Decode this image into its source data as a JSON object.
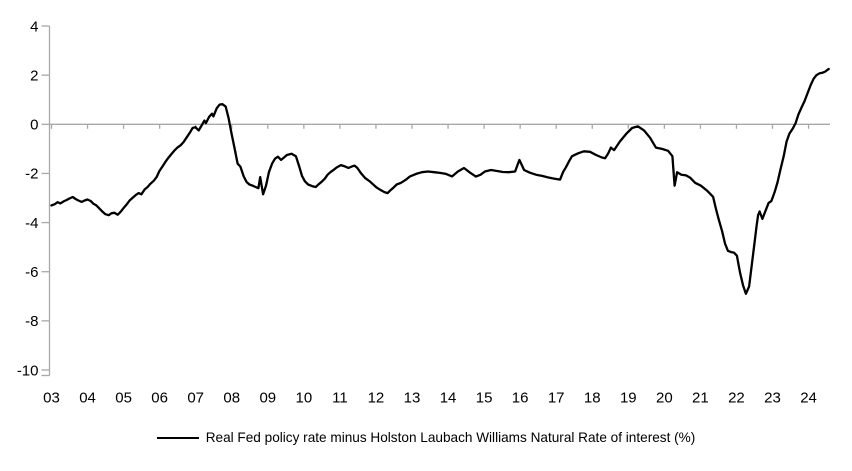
{
  "legend": {
    "label": "Real Fed policy rate minus Holston Laubach Williams Natural Rate of interest (%)"
  },
  "colors": {
    "line": "#000000",
    "axis_gray": "#a8a8a8",
    "label_text": "#000000",
    "background": "#ffffff"
  },
  "chart_data": {
    "type": "line",
    "title": "",
    "xlabel": "",
    "ylabel": "",
    "grid": "zero-line-only",
    "legend_position": "bottom-center",
    "ylim": [
      -10,
      4
    ],
    "xlim": [
      2003,
      2024.72
    ],
    "y_ticks": [
      4,
      2,
      0,
      -2,
      -4,
      -6,
      -8,
      -10
    ],
    "y_tick_labels": [
      "4",
      "2",
      "0",
      "-2",
      "-4",
      "-6",
      "-8",
      "-10"
    ],
    "x_tick_years": [
      2003,
      2004,
      2005,
      2006,
      2007,
      2008,
      2009,
      2010,
      2011,
      2012,
      2013,
      2014,
      2015,
      2016,
      2017,
      2018,
      2019,
      2020,
      2021,
      2022,
      2023,
      2024
    ],
    "x_tick_labels": [
      "03",
      "04",
      "05",
      "06",
      "07",
      "08",
      "09",
      "10",
      "11",
      "12",
      "13",
      "14",
      "15",
      "16",
      "17",
      "18",
      "19",
      "20",
      "21",
      "22",
      "23",
      "24"
    ],
    "series": [
      {
        "name": "Real Fed policy rate minus Holston Laubach Williams Natural Rate of interest (%)",
        "color": "#000000",
        "points": [
          [
            2003.04,
            -3.3
          ],
          [
            2003.13,
            -3.25
          ],
          [
            2003.21,
            -3.17
          ],
          [
            2003.29,
            -3.22
          ],
          [
            2003.38,
            -3.14
          ],
          [
            2003.46,
            -3.08
          ],
          [
            2003.54,
            -3.02
          ],
          [
            2003.63,
            -2.96
          ],
          [
            2003.71,
            -3.04
          ],
          [
            2003.79,
            -3.1
          ],
          [
            2003.88,
            -3.16
          ],
          [
            2003.96,
            -3.1
          ],
          [
            2004.04,
            -3.06
          ],
          [
            2004.13,
            -3.12
          ],
          [
            2004.21,
            -3.24
          ],
          [
            2004.29,
            -3.3
          ],
          [
            2004.38,
            -3.44
          ],
          [
            2004.46,
            -3.56
          ],
          [
            2004.54,
            -3.66
          ],
          [
            2004.63,
            -3.7
          ],
          [
            2004.71,
            -3.62
          ],
          [
            2004.79,
            -3.6
          ],
          [
            2004.88,
            -3.68
          ],
          [
            2004.96,
            -3.56
          ],
          [
            2005.04,
            -3.42
          ],
          [
            2005.13,
            -3.26
          ],
          [
            2005.21,
            -3.1
          ],
          [
            2005.29,
            -3.0
          ],
          [
            2005.38,
            -2.88
          ],
          [
            2005.46,
            -2.8
          ],
          [
            2005.54,
            -2.85
          ],
          [
            2005.63,
            -2.65
          ],
          [
            2005.71,
            -2.55
          ],
          [
            2005.79,
            -2.42
          ],
          [
            2005.88,
            -2.3
          ],
          [
            2005.96,
            -2.15
          ],
          [
            2006.04,
            -1.9
          ],
          [
            2006.13,
            -1.7
          ],
          [
            2006.21,
            -1.52
          ],
          [
            2006.29,
            -1.36
          ],
          [
            2006.38,
            -1.2
          ],
          [
            2006.46,
            -1.06
          ],
          [
            2006.54,
            -0.95
          ],
          [
            2006.63,
            -0.85
          ],
          [
            2006.71,
            -0.72
          ],
          [
            2006.79,
            -0.55
          ],
          [
            2006.88,
            -0.35
          ],
          [
            2006.96,
            -0.15
          ],
          [
            2007.04,
            -0.12
          ],
          [
            2007.13,
            -0.25
          ],
          [
            2007.21,
            -0.05
          ],
          [
            2007.29,
            0.15
          ],
          [
            2007.33,
            0.05
          ],
          [
            2007.42,
            0.3
          ],
          [
            2007.5,
            0.43
          ],
          [
            2007.54,
            0.32
          ],
          [
            2007.63,
            0.65
          ],
          [
            2007.71,
            0.8
          ],
          [
            2007.79,
            0.82
          ],
          [
            2007.88,
            0.72
          ],
          [
            2007.96,
            0.25
          ],
          [
            2008.04,
            -0.35
          ],
          [
            2008.13,
            -1.0
          ],
          [
            2008.21,
            -1.6
          ],
          [
            2008.29,
            -1.72
          ],
          [
            2008.38,
            -2.12
          ],
          [
            2008.46,
            -2.35
          ],
          [
            2008.54,
            -2.45
          ],
          [
            2008.63,
            -2.5
          ],
          [
            2008.71,
            -2.55
          ],
          [
            2008.79,
            -2.6
          ],
          [
            2008.84,
            -2.15
          ],
          [
            2008.92,
            -2.85
          ],
          [
            2009.0,
            -2.5
          ],
          [
            2009.08,
            -1.95
          ],
          [
            2009.17,
            -1.6
          ],
          [
            2009.25,
            -1.4
          ],
          [
            2009.33,
            -1.32
          ],
          [
            2009.42,
            -1.45
          ],
          [
            2009.5,
            -1.35
          ],
          [
            2009.58,
            -1.25
          ],
          [
            2009.71,
            -1.2
          ],
          [
            2009.83,
            -1.3
          ],
          [
            2009.92,
            -1.7
          ],
          [
            2010.0,
            -2.1
          ],
          [
            2010.08,
            -2.32
          ],
          [
            2010.17,
            -2.45
          ],
          [
            2010.29,
            -2.52
          ],
          [
            2010.38,
            -2.55
          ],
          [
            2010.46,
            -2.44
          ],
          [
            2010.54,
            -2.35
          ],
          [
            2010.63,
            -2.22
          ],
          [
            2010.71,
            -2.05
          ],
          [
            2010.79,
            -1.95
          ],
          [
            2010.88,
            -1.85
          ],
          [
            2010.96,
            -1.76
          ],
          [
            2011.08,
            -1.66
          ],
          [
            2011.17,
            -1.7
          ],
          [
            2011.29,
            -1.78
          ],
          [
            2011.38,
            -1.72
          ],
          [
            2011.46,
            -1.68
          ],
          [
            2011.54,
            -1.78
          ],
          [
            2011.63,
            -1.98
          ],
          [
            2011.75,
            -2.18
          ],
          [
            2011.88,
            -2.32
          ],
          [
            2012.0,
            -2.48
          ],
          [
            2012.08,
            -2.58
          ],
          [
            2012.17,
            -2.66
          ],
          [
            2012.29,
            -2.76
          ],
          [
            2012.38,
            -2.8
          ],
          [
            2012.46,
            -2.68
          ],
          [
            2012.54,
            -2.58
          ],
          [
            2012.63,
            -2.45
          ],
          [
            2012.75,
            -2.38
          ],
          [
            2012.88,
            -2.26
          ],
          [
            2013.0,
            -2.12
          ],
          [
            2013.17,
            -2.02
          ],
          [
            2013.33,
            -1.95
          ],
          [
            2013.5,
            -1.92
          ],
          [
            2013.67,
            -1.95
          ],
          [
            2013.83,
            -1.98
          ],
          [
            2014.0,
            -2.02
          ],
          [
            2014.17,
            -2.12
          ],
          [
            2014.33,
            -1.92
          ],
          [
            2014.5,
            -1.78
          ],
          [
            2014.67,
            -1.97
          ],
          [
            2014.83,
            -2.13
          ],
          [
            2014.96,
            -2.05
          ],
          [
            2015.08,
            -1.92
          ],
          [
            2015.25,
            -1.86
          ],
          [
            2015.42,
            -1.9
          ],
          [
            2015.58,
            -1.94
          ],
          [
            2015.75,
            -1.95
          ],
          [
            2015.92,
            -1.92
          ],
          [
            2016.04,
            -1.45
          ],
          [
            2016.17,
            -1.86
          ],
          [
            2016.33,
            -1.97
          ],
          [
            2016.5,
            -2.05
          ],
          [
            2016.67,
            -2.1
          ],
          [
            2016.83,
            -2.16
          ],
          [
            2017.0,
            -2.21
          ],
          [
            2017.17,
            -2.25
          ],
          [
            2017.25,
            -1.95
          ],
          [
            2017.33,
            -1.75
          ],
          [
            2017.42,
            -1.5
          ],
          [
            2017.5,
            -1.3
          ],
          [
            2017.67,
            -1.18
          ],
          [
            2017.83,
            -1.1
          ],
          [
            2018.0,
            -1.12
          ],
          [
            2018.17,
            -1.25
          ],
          [
            2018.33,
            -1.35
          ],
          [
            2018.42,
            -1.38
          ],
          [
            2018.5,
            -1.2
          ],
          [
            2018.58,
            -0.95
          ],
          [
            2018.67,
            -1.05
          ],
          [
            2018.83,
            -0.7
          ],
          [
            2019.0,
            -0.4
          ],
          [
            2019.17,
            -0.15
          ],
          [
            2019.33,
            -0.08
          ],
          [
            2019.5,
            -0.25
          ],
          [
            2019.67,
            -0.55
          ],
          [
            2019.83,
            -0.95
          ],
          [
            2020.0,
            -1.0
          ],
          [
            2020.17,
            -1.08
          ],
          [
            2020.29,
            -1.3
          ],
          [
            2020.35,
            -2.5
          ],
          [
            2020.42,
            -1.95
          ],
          [
            2020.54,
            -2.05
          ],
          [
            2020.67,
            -2.08
          ],
          [
            2020.79,
            -2.18
          ],
          [
            2020.92,
            -2.38
          ],
          [
            2021.08,
            -2.5
          ],
          [
            2021.25,
            -2.7
          ],
          [
            2021.42,
            -2.95
          ],
          [
            2021.5,
            -3.45
          ],
          [
            2021.58,
            -3.9
          ],
          [
            2021.67,
            -4.35
          ],
          [
            2021.75,
            -4.85
          ],
          [
            2021.83,
            -5.15
          ],
          [
            2021.92,
            -5.2
          ],
          [
            2022.0,
            -5.22
          ],
          [
            2022.08,
            -5.35
          ],
          [
            2022.17,
            -6.05
          ],
          [
            2022.25,
            -6.55
          ],
          [
            2022.33,
            -6.9
          ],
          [
            2022.42,
            -6.6
          ],
          [
            2022.5,
            -5.65
          ],
          [
            2022.58,
            -4.7
          ],
          [
            2022.63,
            -4.1
          ],
          [
            2022.67,
            -3.7
          ],
          [
            2022.71,
            -3.55
          ],
          [
            2022.79,
            -3.85
          ],
          [
            2022.88,
            -3.5
          ],
          [
            2022.96,
            -3.2
          ],
          [
            2023.04,
            -3.12
          ],
          [
            2023.13,
            -2.75
          ],
          [
            2023.21,
            -2.35
          ],
          [
            2023.29,
            -1.85
          ],
          [
            2023.38,
            -1.3
          ],
          [
            2023.46,
            -0.7
          ],
          [
            2023.54,
            -0.38
          ],
          [
            2023.63,
            -0.18
          ],
          [
            2023.71,
            0.05
          ],
          [
            2023.79,
            0.4
          ],
          [
            2023.88,
            0.7
          ],
          [
            2023.96,
            0.95
          ],
          [
            2024.04,
            1.25
          ],
          [
            2024.13,
            1.6
          ],
          [
            2024.21,
            1.85
          ],
          [
            2024.29,
            2.0
          ],
          [
            2024.38,
            2.08
          ],
          [
            2024.46,
            2.1
          ],
          [
            2024.54,
            2.15
          ],
          [
            2024.58,
            2.2
          ],
          [
            2024.63,
            2.25
          ]
        ]
      }
    ]
  }
}
